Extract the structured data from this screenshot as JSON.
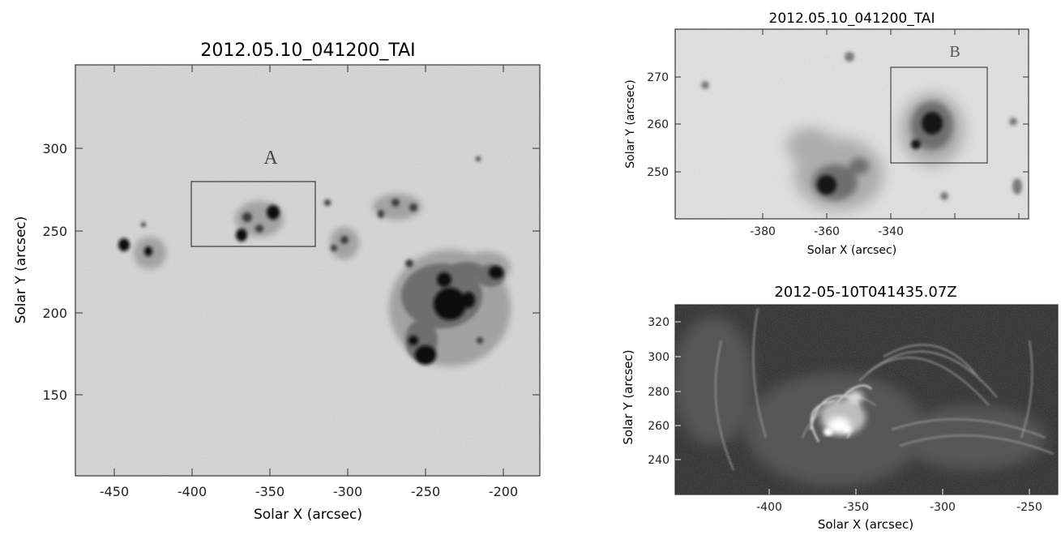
{
  "panels": {
    "left": {
      "title": "2012.05.10_041200_TAI",
      "xlabel": "Solar X (arcsec)",
      "ylabel": "Solar Y (arcsec)",
      "xticks": [
        "-450",
        "-400",
        "-350",
        "-300",
        "-250",
        "-200"
      ],
      "yticks": [
        "300",
        "250",
        "200",
        "150"
      ],
      "box_label": "A"
    },
    "right_top": {
      "title": "2012.05.10_041200_TAI",
      "xlabel": "Solar X (arcsec)",
      "ylabel": "Solar Y (arcsec)",
      "xticks": [
        "-380",
        "-360",
        "-340"
      ],
      "yticks": [
        "270",
        "260",
        "250"
      ],
      "box_label": "B"
    },
    "right_bottom": {
      "title": "2012-05-10T041435.07Z",
      "xlabel": "Solar X (arcsec)",
      "ylabel": "Solar Y (arcsec)",
      "xticks": [
        "-400",
        "-350",
        "-300",
        "-250"
      ],
      "yticks": [
        "320",
        "300",
        "280",
        "260",
        "240"
      ]
    }
  },
  "colors": {
    "photosphere_bg": "#d6d6d6",
    "sunspot_dark": "#101010",
    "corona_bg": "#2a2a2a",
    "corona_bright": "#ffffff"
  }
}
